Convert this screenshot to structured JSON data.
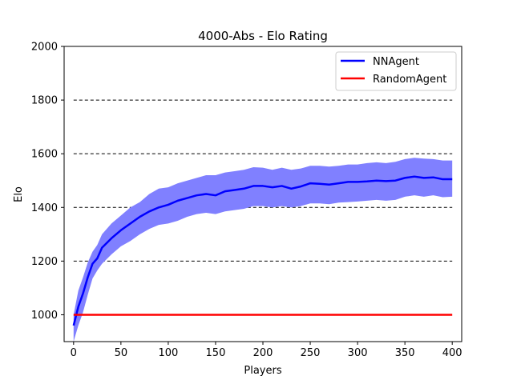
{
  "chart_data": {
    "type": "line",
    "title": "4000-Abs - Elo Rating",
    "xlabel": "Players",
    "ylabel": "Elo",
    "xlim": [
      -10,
      410
    ],
    "ylim": [
      900,
      2000
    ],
    "xticks": [
      0,
      50,
      100,
      150,
      200,
      250,
      300,
      350,
      400
    ],
    "xtick_labels": [
      "0",
      "50",
      "100",
      "150",
      "200",
      "250",
      "300",
      "350",
      "400"
    ],
    "yticks": [
      1000,
      1200,
      1400,
      1600,
      1800,
      2000
    ],
    "ytick_labels": [
      "1000",
      "1200",
      "1400",
      "1600",
      "1800",
      "2000"
    ],
    "reference_lines": [
      1200,
      1400,
      1600,
      1800
    ],
    "reference_x_range": [
      0,
      400
    ],
    "legend_position": "top-right",
    "series": [
      {
        "name": "NNAgent",
        "color": "#0000ff",
        "band_color": "#8080ff",
        "x": [
          0,
          5,
          10,
          15,
          20,
          25,
          30,
          40,
          50,
          60,
          70,
          80,
          90,
          100,
          110,
          120,
          130,
          140,
          150,
          160,
          170,
          180,
          190,
          200,
          210,
          220,
          230,
          240,
          250,
          260,
          270,
          280,
          290,
          300,
          310,
          320,
          330,
          340,
          350,
          360,
          370,
          380,
          390,
          400
        ],
        "values": [
          960,
          1030,
          1080,
          1140,
          1190,
          1210,
          1250,
          1285,
          1315,
          1340,
          1365,
          1385,
          1400,
          1410,
          1425,
          1435,
          1445,
          1450,
          1445,
          1460,
          1465,
          1470,
          1480,
          1480,
          1475,
          1480,
          1470,
          1478,
          1490,
          1488,
          1485,
          1490,
          1495,
          1495,
          1497,
          1500,
          1498,
          1500,
          1510,
          1515,
          1510,
          1512,
          1505,
          1505
        ],
        "upper": [
          1000,
          1090,
          1140,
          1195,
          1235,
          1260,
          1300,
          1340,
          1370,
          1400,
          1420,
          1450,
          1470,
          1475,
          1490,
          1500,
          1510,
          1520,
          1520,
          1530,
          1535,
          1540,
          1550,
          1548,
          1540,
          1548,
          1540,
          1545,
          1555,
          1555,
          1552,
          1555,
          1560,
          1560,
          1565,
          1568,
          1565,
          1570,
          1580,
          1585,
          1582,
          1580,
          1575,
          1575
        ],
        "lower": [
          900,
          960,
          1010,
          1075,
          1135,
          1165,
          1190,
          1225,
          1255,
          1275,
          1300,
          1320,
          1335,
          1340,
          1350,
          1365,
          1375,
          1380,
          1375,
          1385,
          1390,
          1395,
          1405,
          1405,
          1400,
          1405,
          1400,
          1405,
          1415,
          1415,
          1412,
          1418,
          1420,
          1422,
          1425,
          1428,
          1425,
          1428,
          1440,
          1445,
          1440,
          1445,
          1438,
          1440
        ]
      },
      {
        "name": "RandomAgent",
        "color": "#ff0000",
        "x": [
          0,
          400
        ],
        "values": [
          1000,
          1000
        ]
      }
    ]
  }
}
